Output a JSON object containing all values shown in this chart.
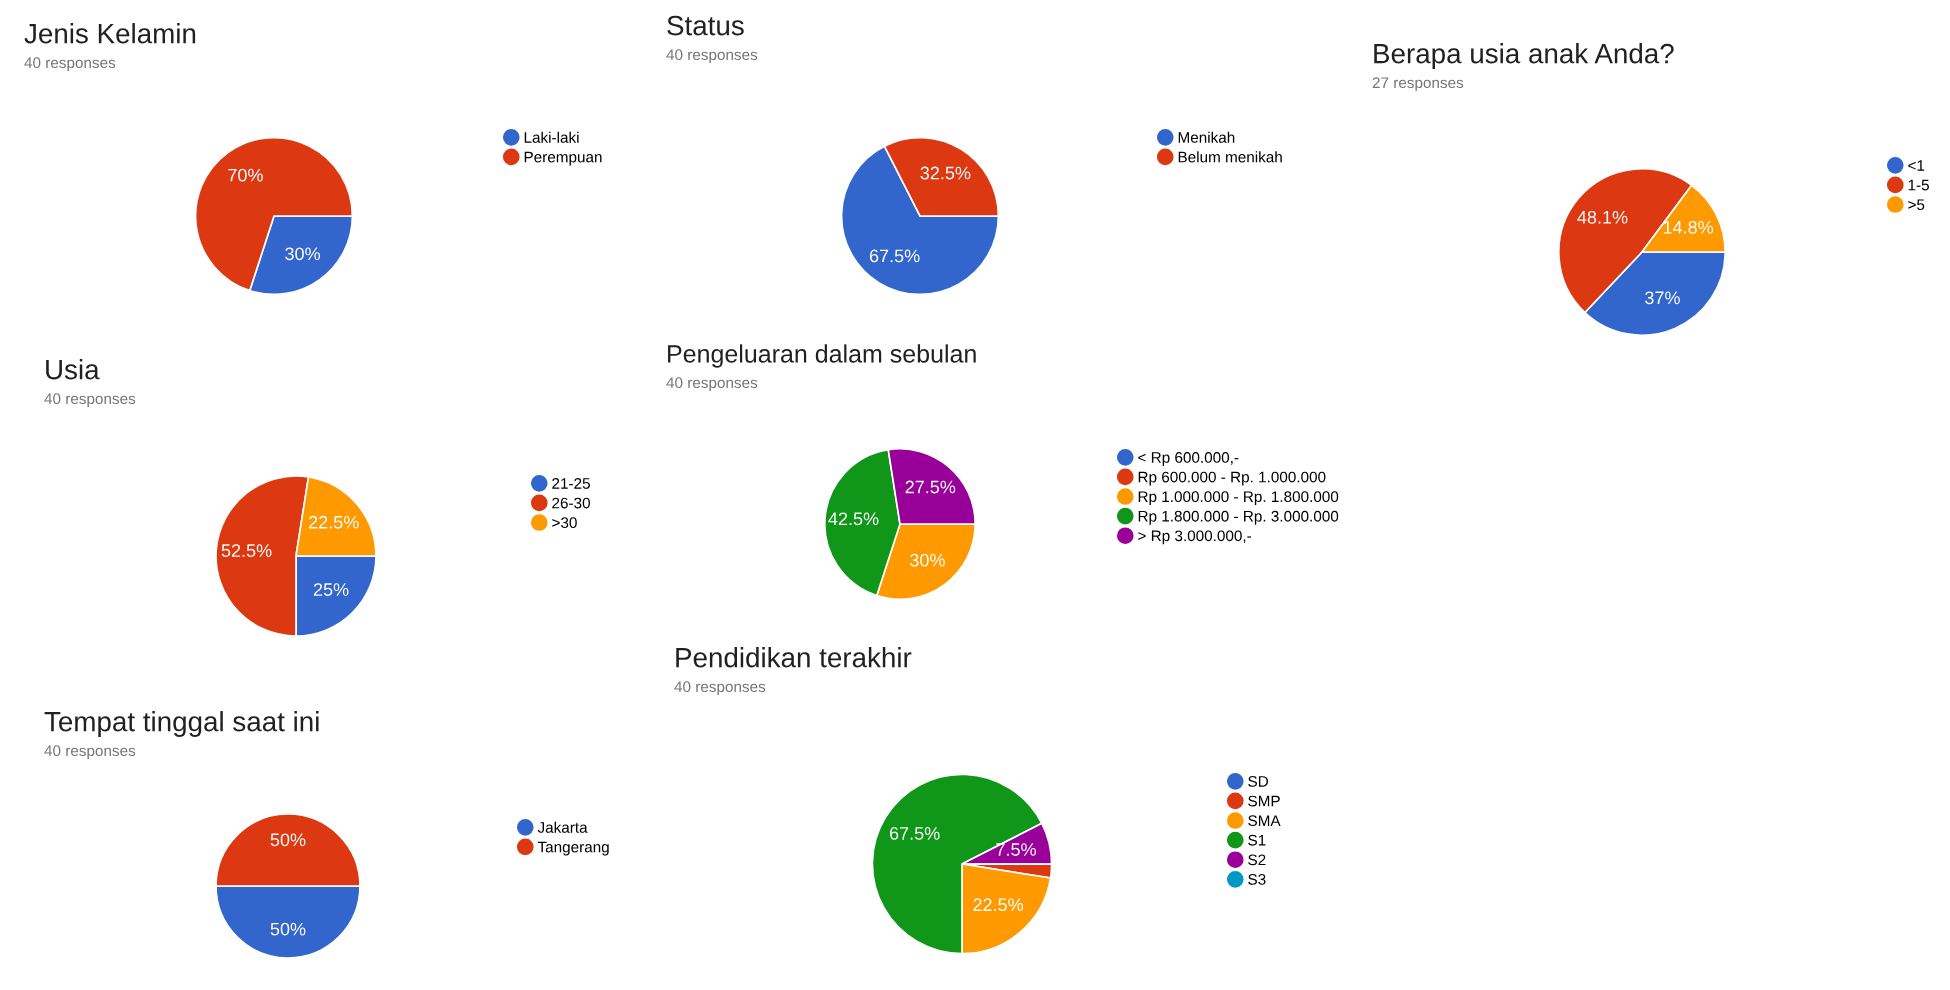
{
  "chart_data": [
    {
      "type": "pie",
      "title": "Jenis Kelamin",
      "subtitle": "40 responses",
      "categories": [
        "Laki-laki",
        "Perempuan"
      ],
      "values": [
        30,
        70
      ],
      "colors": [
        "#3366cc",
        "#dc3912"
      ],
      "value_labels": [
        "30%",
        "70%"
      ],
      "legend": "right"
    },
    {
      "type": "pie",
      "title": "Status",
      "subtitle": "40 responses",
      "categories": [
        "Menikah",
        "Belum menikah"
      ],
      "values": [
        67.5,
        32.5
      ],
      "colors": [
        "#3366cc",
        "#dc3912"
      ],
      "value_labels": [
        "67.5%",
        "32.5%"
      ],
      "legend": "right"
    },
    {
      "type": "pie",
      "title": "Berapa usia anak Anda?",
      "subtitle": "27 responses",
      "categories": [
        "<1",
        "1-5",
        ">5"
      ],
      "values": [
        37,
        48.1,
        14.8
      ],
      "colors": [
        "#3366cc",
        "#dc3912",
        "#ff9900"
      ],
      "value_labels": [
        "37%",
        "48.1%",
        "14.8%"
      ],
      "legend": "right"
    },
    {
      "type": "pie",
      "title": "Usia",
      "subtitle": "40 responses",
      "categories": [
        "21-25",
        "26-30",
        ">30"
      ],
      "values": [
        25,
        52.5,
        22.5
      ],
      "colors": [
        "#3366cc",
        "#dc3912",
        "#ff9900"
      ],
      "value_labels": [
        "25%",
        "52.5%",
        "22.5%"
      ],
      "legend": "right"
    },
    {
      "type": "pie",
      "title": "Pengeluaran dalam sebulan",
      "subtitle": "40 responses",
      "categories": [
        "< Rp 600.000,-",
        "Rp 600.000 - Rp. 1.000.000",
        "Rp 1.000.000 - Rp. 1.800.000",
        "Rp 1.800.000 - Rp. 3.000.000",
        "> Rp 3.000.000,-"
      ],
      "values": [
        0,
        0,
        30,
        42.5,
        27.5
      ],
      "colors": [
        "#3366cc",
        "#dc3912",
        "#ff9900",
        "#109618",
        "#990099"
      ],
      "value_labels": [
        null,
        null,
        "30%",
        "42.5%",
        "27.5%"
      ],
      "legend": "right"
    },
    {
      "type": "pie",
      "title": "Tempat tinggal saat ini",
      "subtitle": "40 responses",
      "categories": [
        "Jakarta",
        "Tangerang"
      ],
      "values": [
        50,
        50
      ],
      "colors": [
        "#3366cc",
        "#dc3912"
      ],
      "value_labels": [
        "50%",
        "50%"
      ],
      "legend": "right"
    },
    {
      "type": "pie",
      "title": "Pendidikan terakhir",
      "subtitle": "40 responses",
      "categories": [
        "SD",
        "SMP",
        "SMA",
        "S1",
        "S2",
        "S3"
      ],
      "values": [
        0,
        2.5,
        22.5,
        67.5,
        7.5,
        0
      ],
      "colors": [
        "#3366cc",
        "#dc3912",
        "#ff9900",
        "#109618",
        "#990099",
        "#0099c6"
      ],
      "value_labels": [
        null,
        null,
        "22.5%",
        "67.5%",
        "7.5%",
        null
      ],
      "legend": "right"
    }
  ]
}
